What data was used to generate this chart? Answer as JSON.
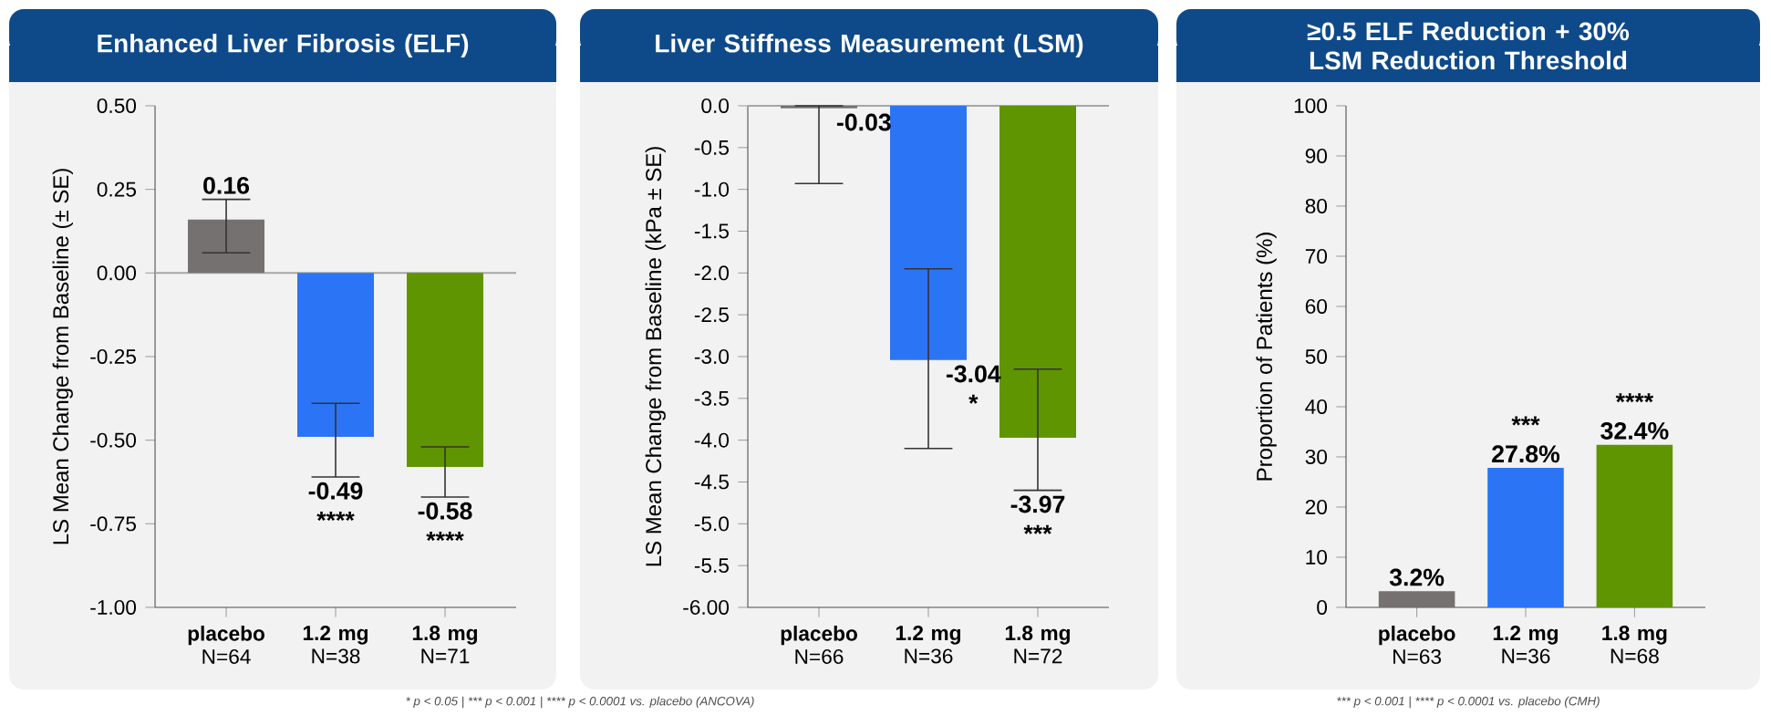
{
  "chart_data": [
    {
      "type": "bar",
      "title": "Enhanced Liver Fibrosis (ELF)",
      "ylabel": "LS Mean Change from Baseline (± SE)",
      "categories": [
        "**placebo** N=64",
        "**1.2 mg** N=38",
        "**1.8 mg** N=71"
      ],
      "values": [
        0.16,
        -0.49,
        -0.58
      ],
      "errors": [
        [
          0.06,
          0.22
        ],
        [
          -0.61,
          -0.39
        ],
        [
          -0.67,
          -0.52
        ]
      ],
      "colors": [
        "#767171",
        "#2b74f5",
        "#5f9500"
      ],
      "value_labels": [
        "0.16",
        "-0.49 ****",
        "-0.58 ****"
      ],
      "ylim": [
        -1.0,
        0.5
      ],
      "yticks": [
        {
          "value": 0.5,
          "label": "0.50"
        },
        {
          "value": 0.25,
          "label": "0.25"
        },
        {
          "value": 0,
          "label": "0.00"
        },
        {
          "value": -0.25,
          "label": "-0.25"
        },
        {
          "value": -0.5,
          "label": "-0.50"
        },
        {
          "value": -0.75,
          "label": "-0.75"
        },
        {
          "value": -1.0,
          "label": "-1.00"
        }
      ],
      "ref_lines": [
        {
          "axis": "y",
          "value": 0,
          "color": "#a6a6a6"
        }
      ],
      "annotations": [
        "* p < 0.05 |",
        "*** p < 0.001 |",
        "**** p < 0.0001 vs. placebo (ANCOVA)"
      ]
    },
    {
      "type": "bar",
      "title": "Liver Stiffness Measurement (LSM)",
      "ylabel": "LS Mean Change from Baseline (kPa ± SE)",
      "categories": [
        "**placebo** N=66",
        "**1.2 mg** N=36",
        "**1.8 mg** N=72"
      ],
      "values": [
        -0.03,
        -3.04,
        -3.97
      ],
      "errors": [
        [
          -0.93,
          0
        ],
        [
          -4.1,
          -1.95
        ],
        [
          -4.6,
          -3.15
        ]
      ],
      "colors": [
        "#767171",
        "#2b74f5",
        "#5f9500"
      ],
      "value_labels": [
        "-0.03",
        "-3.04 *",
        "-3.97 ***"
      ],
      "ylim": [
        -6.0,
        0
      ],
      "yticks": [
        {
          "value": 0,
          "label": "0.0"
        },
        {
          "value": -0.5,
          "label": "-0.5"
        },
        {
          "value": -1.0,
          "label": "-1.0"
        },
        {
          "value": -1.5,
          "label": "-1.5"
        },
        {
          "value": -2.0,
          "label": "-2.0"
        },
        {
          "value": -2.5,
          "label": "-2.5"
        },
        {
          "value": -3.0,
          "label": "-3.0"
        },
        {
          "value": -3.5,
          "label": "-3.5"
        },
        {
          "value": -4.0,
          "label": "-4.0"
        },
        {
          "value": -4.5,
          "label": "-4.5"
        },
        {
          "value": -5.0,
          "label": "-5.0"
        },
        {
          "value": -5.5,
          "label": "-5.5"
        },
        {
          "value": -6.0,
          "label": "-6.00"
        }
      ],
      "ref_lines": [
        {
          "axis": "y",
          "value": 0,
          "color": "#a6a6a6"
        }
      ]
    },
    {
      "type": "bar",
      "title": "≥0.5 ELF Reduction + 30% LSM Reduction Threshold",
      "ylabel": "Proportion of Patients (%)",
      "categories": [
        "**placebo** N=63",
        "**1.2 mg** N=36",
        "**1.8 mg** N=68"
      ],
      "values": [
        3.2,
        27.8,
        32.4
      ],
      "value_labels": [
        "3.2%",
        "*** 27.8%",
        "**** 32.4%"
      ],
      "colors": [
        "#767171",
        "#2b74f5",
        "#5f9500"
      ],
      "ylim": [
        0,
        100
      ],
      "yticks": [
        0,
        10,
        20,
        30,
        40,
        50,
        60,
        70,
        80,
        90,
        100
      ],
      "annotations": [
        "*** p < 0.001 |",
        "**** p < 0.0001 vs. placebo (CMH)"
      ]
    }
  ]
}
